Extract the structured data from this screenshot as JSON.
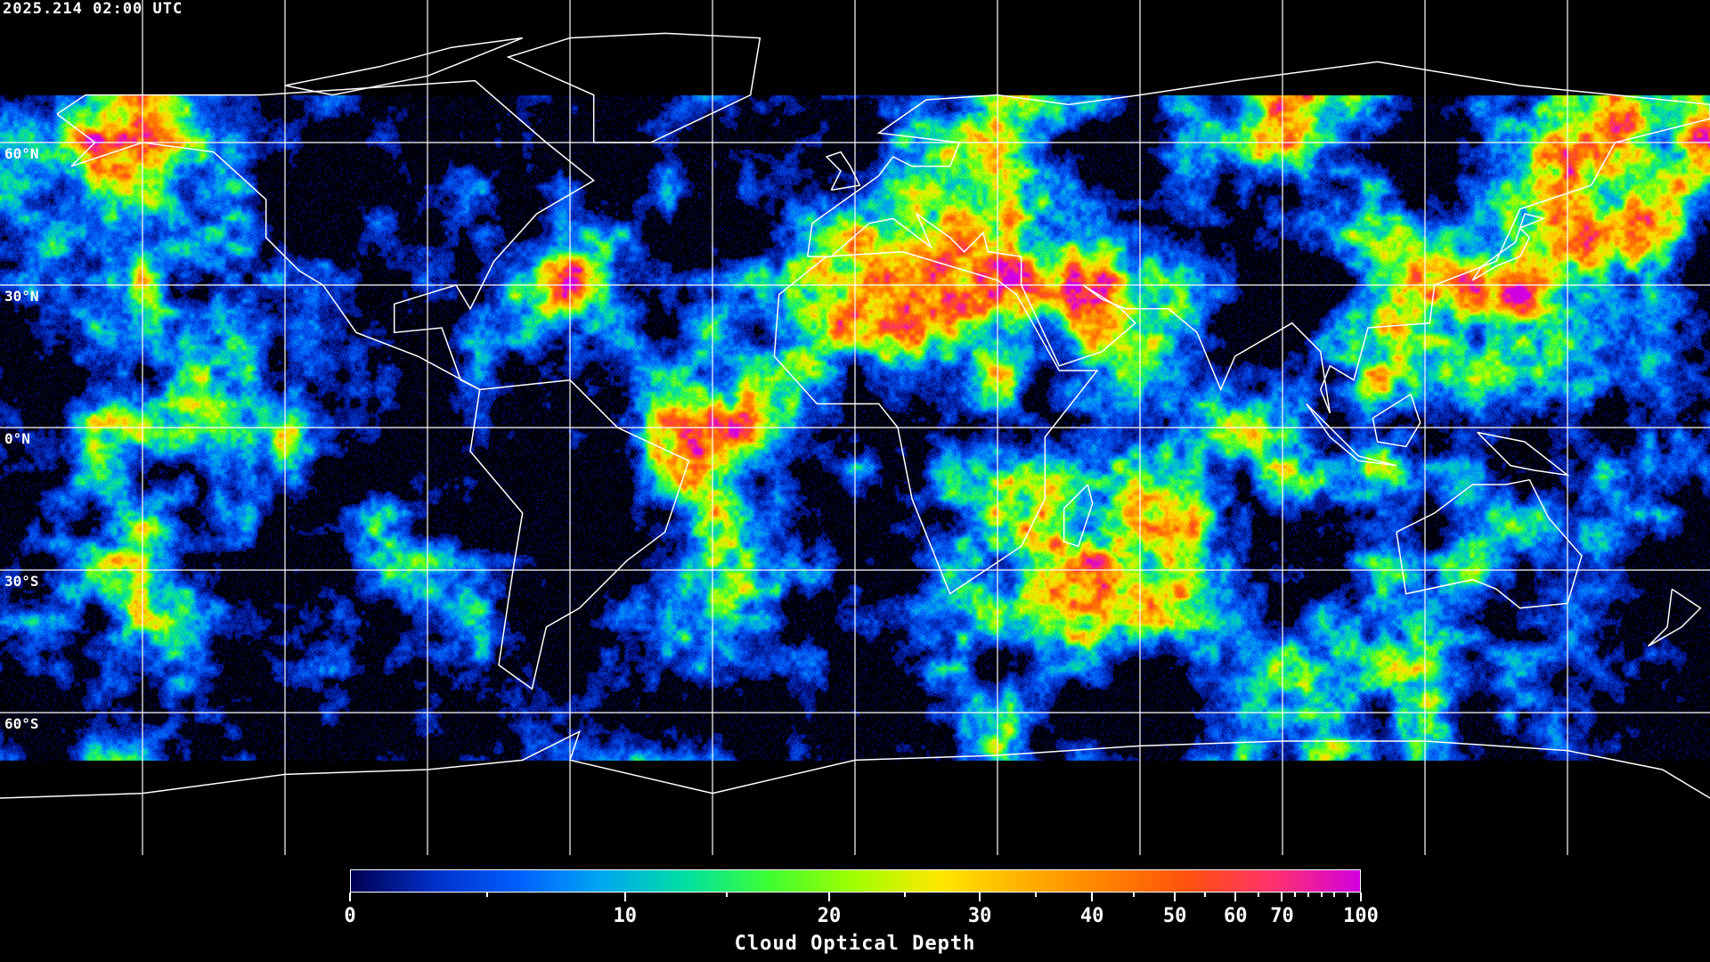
{
  "title": "2025.214 02:00 UTC",
  "map": {
    "projection": "equirectangular",
    "lon_range": [
      -180,
      180
    ],
    "lat_range": [
      -90,
      90
    ],
    "grid_lon_step": 30,
    "grid_lat_step": 30,
    "data_coverage_lat": [
      -70,
      70
    ],
    "lat_labels": [
      "60°N",
      "30°N",
      "0°N",
      "30°S",
      "60°S"
    ],
    "gridline_color": "#ffffff",
    "coastline_color": "#ffffff",
    "background": "#000000"
  },
  "colorbar": {
    "label": "Cloud Optical Depth",
    "range": [
      0,
      100
    ],
    "tick_labels": [
      "0",
      "10",
      "20",
      "30",
      "40",
      "50",
      "60",
      "70",
      "100"
    ],
    "minor_ticks": [
      5,
      15,
      25,
      35,
      45,
      55,
      65,
      75,
      80,
      85,
      90,
      95
    ],
    "colors": [
      "#000050",
      "#0030c8",
      "#0060ff",
      "#00a8f0",
      "#00e0a0",
      "#40ff30",
      "#a0ff00",
      "#ffe800",
      "#ffb000",
      "#ff8000",
      "#ff5010",
      "#ff3070",
      "#d000e0"
    ]
  }
}
